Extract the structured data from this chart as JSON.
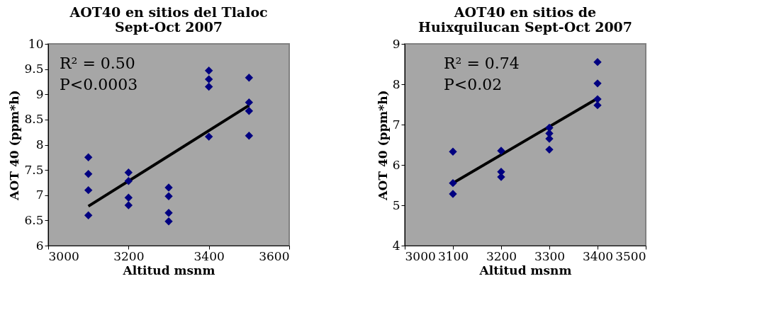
{
  "chart_data": [
    {
      "type": "scatter",
      "title": [
        "AOT40 en sitios del Tlaloc",
        "Sept-Oct 2007"
      ],
      "xlabel": "Altitud msnm",
      "ylabel": "AOT 40 (ppm*h)",
      "xlim": [
        3000,
        3600
      ],
      "xticks": [
        3000,
        3200,
        3400,
        3600
      ],
      "ylim": [
        6,
        10
      ],
      "yticks": [
        6,
        6.5,
        7,
        7.5,
        8,
        8.5,
        9,
        9.5,
        10
      ],
      "grid": false,
      "marker": "diamond",
      "annotations": [
        "R² = 0.50",
        "P<0.0003"
      ],
      "series": [
        {
          "color": "#000080",
          "x": [
            3100,
            3100,
            3100,
            3100,
            3200,
            3200,
            3200,
            3200,
            3300,
            3300,
            3300,
            3300,
            3400,
            3400,
            3400,
            3400,
            3500,
            3500,
            3500,
            3500
          ],
          "values": [
            7.75,
            7.42,
            7.1,
            6.6,
            7.45,
            7.28,
            6.95,
            6.8,
            7.15,
            6.98,
            6.65,
            6.48,
            9.47,
            9.3,
            9.15,
            8.16,
            9.33,
            8.84,
            8.67,
            8.18
          ]
        },
        {
          "type": "line",
          "marker": "none",
          "color": "#000000",
          "x": [
            3100,
            3500
          ],
          "values": [
            6.78,
            8.78
          ]
        }
      ]
    },
    {
      "type": "scatter",
      "title": [
        "AOT40 en sitios de",
        "Huixquilucan Sept-Oct 2007"
      ],
      "xlabel": "Altitud msnm",
      "ylabel": "AOT 40 (ppm*h)",
      "xlim": [
        3000,
        3500
      ],
      "xticks": [
        3000,
        3100,
        3200,
        3300,
        3400,
        3500
      ],
      "ylim": [
        4,
        9
      ],
      "yticks": [
        4,
        5,
        6,
        7,
        8,
        9
      ],
      "grid": false,
      "marker": "diamond",
      "annotations": [
        "R² = 0.74",
        "P<0.02"
      ],
      "series": [
        {
          "color": "#000080",
          "x": [
            3100,
            3100,
            3100,
            3200,
            3200,
            3200,
            3300,
            3300,
            3300,
            3300,
            3400,
            3400,
            3400,
            3400
          ],
          "values": [
            6.33,
            5.55,
            5.28,
            6.35,
            5.83,
            5.7,
            6.92,
            6.78,
            6.65,
            6.38,
            8.55,
            8.02,
            7.63,
            7.48
          ]
        },
        {
          "type": "line",
          "marker": "none",
          "color": "#000000",
          "x": [
            3100,
            3400
          ],
          "values": [
            5.55,
            7.65
          ]
        }
      ]
    }
  ]
}
